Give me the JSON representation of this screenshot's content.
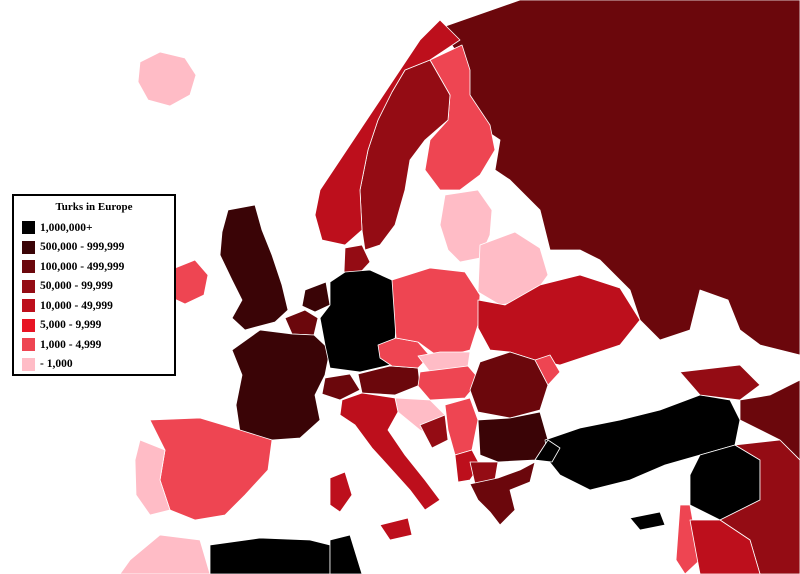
{
  "legend": {
    "title": "Turks in Europe",
    "items": [
      {
        "label": "1,000,000+",
        "color": "#000000"
      },
      {
        "label": "500,000 - 999,999",
        "color": "#3a0406"
      },
      {
        "label": "100,000 - 499,999",
        "color": "#6b070c"
      },
      {
        "label": "50,000 - 99,999",
        "color": "#940c14"
      },
      {
        "label": "10,000 - 49,999",
        "color": "#bd0f1c"
      },
      {
        "label": "5,000 - 9,999",
        "color": "#e81424"
      },
      {
        "label": "1,000 - 4,999",
        "color": "#ee4552"
      },
      {
        "label": "- 1,000",
        "color": "#ffbcc6"
      }
    ]
  },
  "countries": [
    {
      "name": "Germany",
      "class": "1,000,000+"
    },
    {
      "name": "Turkey",
      "class": "1,000,000+"
    },
    {
      "name": "Syria",
      "class": "1,000,000+"
    },
    {
      "name": "Cyprus",
      "class": "1,000,000+"
    },
    {
      "name": "France",
      "class": "500,000 - 999,999"
    },
    {
      "name": "United Kingdom",
      "class": "500,000 - 999,999"
    },
    {
      "name": "Bulgaria",
      "class": "500,000 - 999,999"
    },
    {
      "name": "Netherlands",
      "class": "500,000 - 999,999"
    },
    {
      "name": "Russia",
      "class": "100,000 - 499,999"
    },
    {
      "name": "Austria",
      "class": "100,000 - 499,999"
    },
    {
      "name": "Belgium",
      "class": "100,000 - 499,999"
    },
    {
      "name": "Greece",
      "class": "100,000 - 499,999"
    },
    {
      "name": "Romania",
      "class": "100,000 - 499,999"
    },
    {
      "name": "Switzerland",
      "class": "100,000 - 499,999"
    },
    {
      "name": "Sweden",
      "class": "50,000 - 99,999"
    },
    {
      "name": "Denmark",
      "class": "50,000 - 99,999"
    },
    {
      "name": "Macedonia",
      "class": "50,000 - 99,999"
    },
    {
      "name": "Iraq",
      "class": "50,000 - 99,999"
    },
    {
      "name": "Norway",
      "class": "10,000 - 49,999"
    },
    {
      "name": "Italy",
      "class": "10,000 - 49,999"
    },
    {
      "name": "Ukraine",
      "class": "10,000 - 49,999"
    },
    {
      "name": "Kosovo",
      "class": "10,000 - 49,999"
    },
    {
      "name": "Finland",
      "class": "1,000 - 4,999"
    },
    {
      "name": "Poland",
      "class": "1,000 - 4,999"
    },
    {
      "name": "Spain",
      "class": "1,000 - 4,999"
    },
    {
      "name": "Czech Republic",
      "class": "1,000 - 4,999"
    },
    {
      "name": "Hungary",
      "class": "1,000 - 4,999"
    },
    {
      "name": "Ireland",
      "class": "1,000 - 4,999"
    },
    {
      "name": "Serbia",
      "class": "1,000 - 4,999"
    },
    {
      "name": "Iceland",
      "class": "- 1,000"
    },
    {
      "name": "Portugal",
      "class": "- 1,000"
    },
    {
      "name": "Belarus",
      "class": "- 1,000"
    },
    {
      "name": "Latvia",
      "class": "- 1,000"
    },
    {
      "name": "Lithuania",
      "class": "- 1,000"
    },
    {
      "name": "Slovakia",
      "class": "- 1,000"
    },
    {
      "name": "Slovenia",
      "class": "- 1,000"
    },
    {
      "name": "Croatia",
      "class": "- 1,000"
    },
    {
      "name": "Algeria",
      "class": "1,000,000+"
    },
    {
      "name": "Tunisia",
      "class": "1,000,000+"
    },
    {
      "name": "Morocco",
      "class": "- 1,000"
    }
  ]
}
